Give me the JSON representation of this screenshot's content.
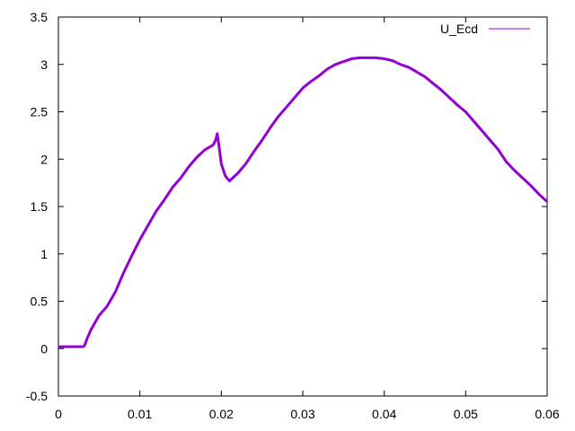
{
  "chart_data": {
    "type": "line",
    "title": "",
    "xlabel": "",
    "ylabel": "",
    "xlim": [
      0,
      0.06
    ],
    "ylim": [
      -0.5,
      3.5
    ],
    "xticks": [
      "0",
      "0.01",
      "0.02",
      "0.03",
      "0.04",
      "0.05",
      "0.06"
    ],
    "yticks": [
      "-0.5",
      "0",
      "0.5",
      "1",
      "1.5",
      "2",
      "2.5",
      "3",
      "3.5"
    ],
    "grid": false,
    "legend_position": "top-right",
    "series": [
      {
        "name": "U_Ecd",
        "color": "#9400d3",
        "x": [
          0,
          0.001,
          0.002,
          0.003,
          0.0032,
          0.0035,
          0.004,
          0.005,
          0.006,
          0.007,
          0.008,
          0.009,
          0.01,
          0.011,
          0.012,
          0.013,
          0.014,
          0.015,
          0.016,
          0.017,
          0.018,
          0.019,
          0.0193,
          0.0195,
          0.0197,
          0.02,
          0.0205,
          0.021,
          0.022,
          0.023,
          0.024,
          0.025,
          0.026,
          0.027,
          0.028,
          0.029,
          0.03,
          0.031,
          0.032,
          0.033,
          0.034,
          0.035,
          0.036,
          0.037,
          0.038,
          0.039,
          0.04,
          0.041,
          0.042,
          0.043,
          0.044,
          0.045,
          0.046,
          0.047,
          0.048,
          0.049,
          0.05,
          0.051,
          0.052,
          0.053,
          0.054,
          0.055,
          0.056,
          0.057,
          0.058,
          0.059,
          0.06
        ],
        "y": [
          0.02,
          0.02,
          0.02,
          0.02,
          0.03,
          0.1,
          0.2,
          0.35,
          0.45,
          0.6,
          0.8,
          0.98,
          1.15,
          1.3,
          1.45,
          1.57,
          1.7,
          1.8,
          1.92,
          2.02,
          2.1,
          2.15,
          2.2,
          2.27,
          2.15,
          1.95,
          1.82,
          1.77,
          1.85,
          1.95,
          2.08,
          2.2,
          2.33,
          2.45,
          2.55,
          2.65,
          2.75,
          2.82,
          2.88,
          2.95,
          3.0,
          3.03,
          3.06,
          3.07,
          3.07,
          3.07,
          3.06,
          3.04,
          3.0,
          2.97,
          2.92,
          2.87,
          2.8,
          2.73,
          2.65,
          2.57,
          2.5,
          2.4,
          2.3,
          2.2,
          2.1,
          1.97,
          1.88,
          1.8,
          1.72,
          1.63,
          1.55
        ]
      }
    ]
  }
}
